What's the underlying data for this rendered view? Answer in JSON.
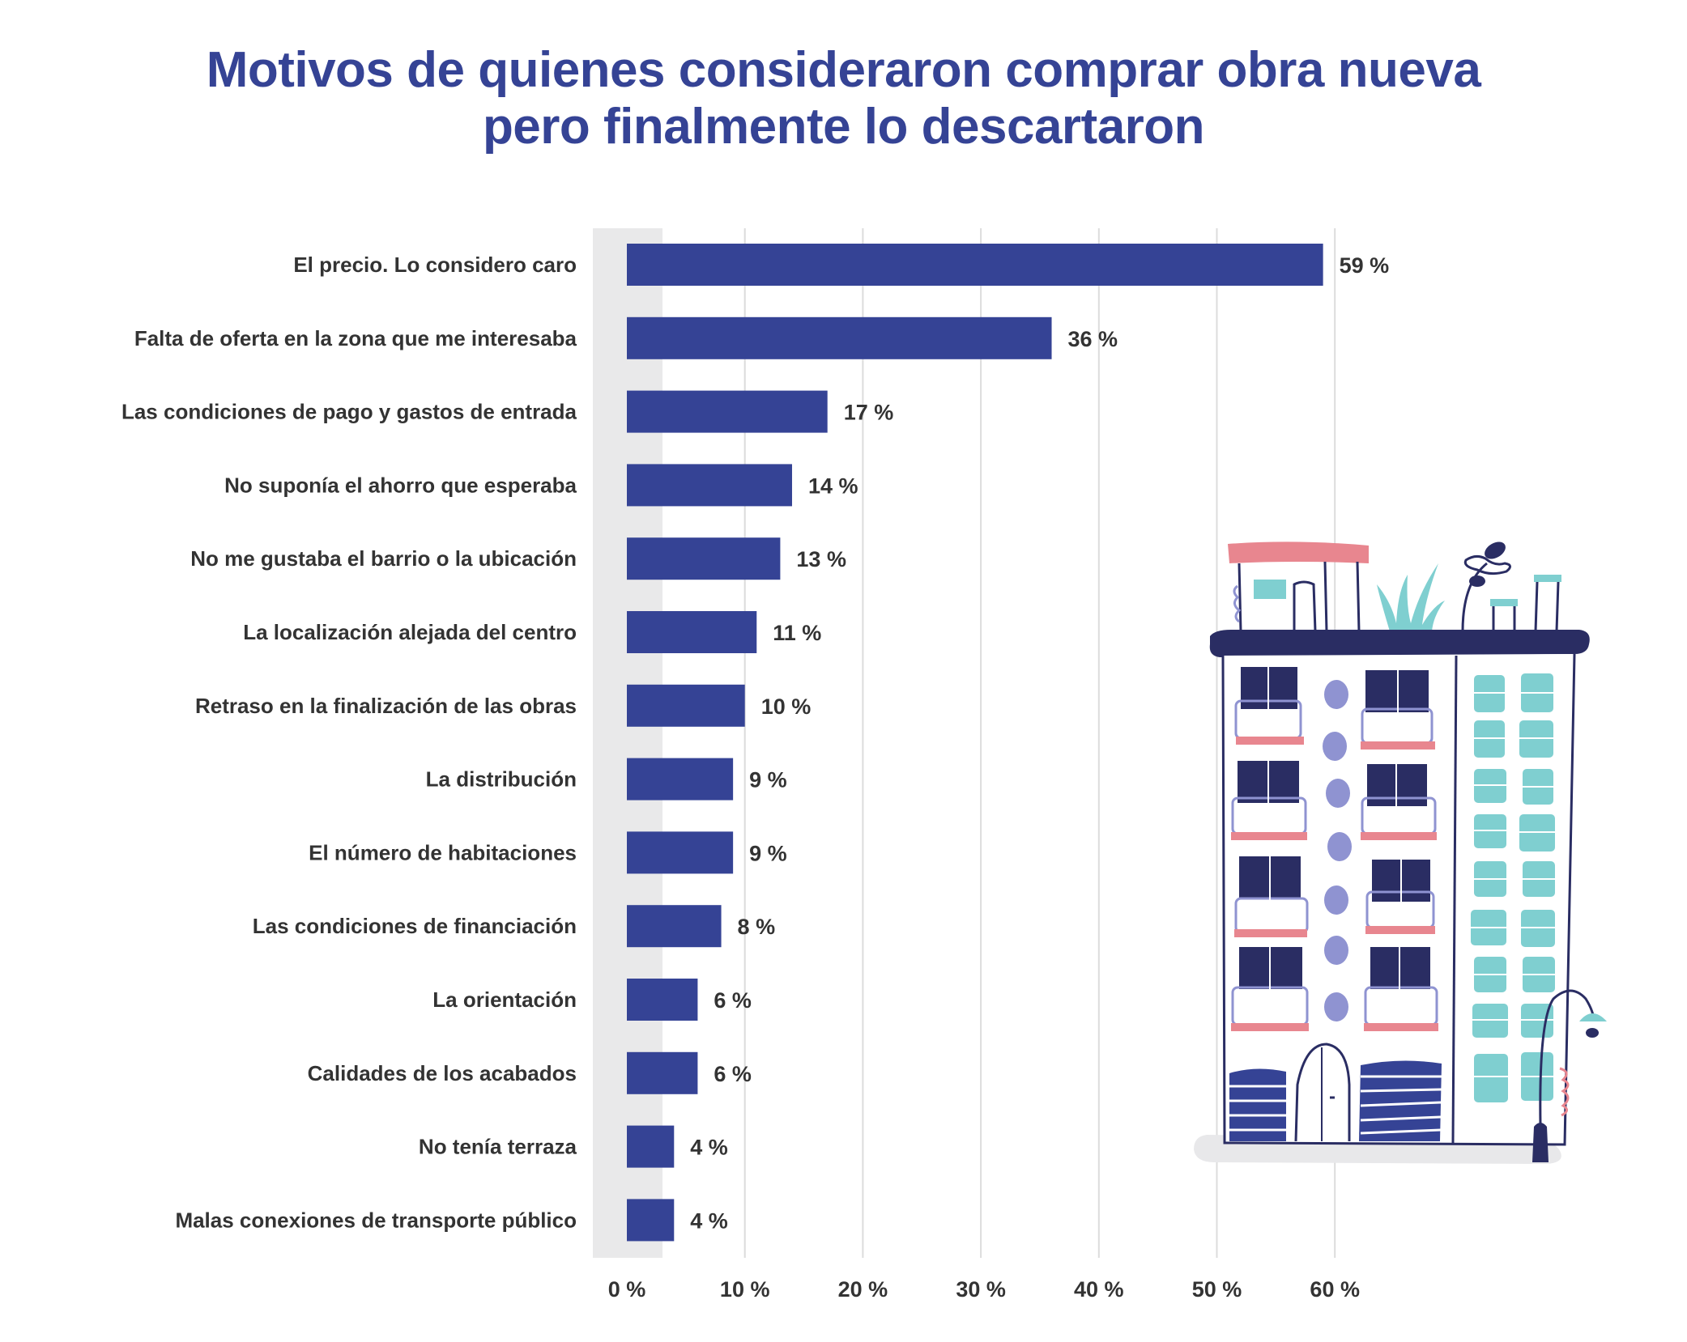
{
  "chart_data": {
    "type": "bar",
    "orientation": "horizontal",
    "title_lines": [
      "Motivos de quienes consideraron comprar obra nueva",
      "pero finalmente lo descartaron"
    ],
    "categories": [
      "El precio. Lo considero caro",
      "Falta de oferta en la zona que me interesaba",
      "Las condiciones de pago y gastos de entrada",
      "No suponía el ahorro que esperaba",
      "No me gustaba el barrio o la ubicación",
      "La localización alejada del centro",
      "Retraso en la finalización de las obras",
      "La distribución",
      "El número de habitaciones",
      "Las condiciones de financiación",
      "La orientación",
      "Calidades de los acabados",
      "No tenía terraza",
      "Malas conexiones de transporte público"
    ],
    "values": [
      59,
      36,
      17,
      14,
      13,
      11,
      10,
      9,
      9,
      8,
      6,
      6,
      4,
      4
    ],
    "value_labels": [
      "59 %",
      "36 %",
      "17 %",
      "14 %",
      "13 %",
      "11 %",
      "10 %",
      "9 %",
      "9 %",
      "8 %",
      "6 %",
      "6 %",
      "4 %",
      "4 %"
    ],
    "x_ticks": [
      0,
      10,
      20,
      30,
      40,
      50,
      60
    ],
    "x_tick_labels": [
      "0 %",
      "10 %",
      "20 %",
      "30 %",
      "40 %",
      "50 %",
      "60 %"
    ],
    "xlim": [
      0,
      60
    ],
    "unit": "%",
    "grid": "vertical",
    "bar_color": "#354395",
    "title_color": "#354395",
    "text_color": "#333333"
  },
  "decoration": {
    "illustration": "building-icon"
  }
}
